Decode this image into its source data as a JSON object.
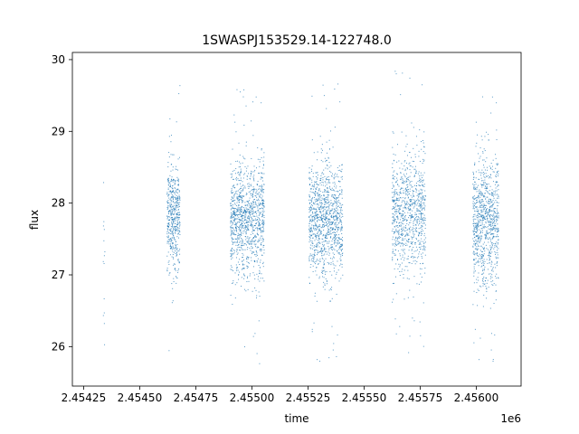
{
  "chart_data": {
    "type": "scatter",
    "title": "1SWASPJ153529.14-122748.0",
    "xlabel": "time",
    "ylabel": "flux",
    "x_offset_label": "1e6",
    "xlim": [
      2.4542,
      2.4562
    ],
    "ylim": [
      25.45,
      30.1
    ],
    "x_ticks": [
      2.45425,
      2.4545,
      2.45475,
      2.455,
      2.45525,
      2.4555,
      2.45575,
      2.456
    ],
    "x_tick_labels": [
      "2.45425",
      "2.45450",
      "2.45475",
      "2.45500",
      "2.45525",
      "2.45550",
      "2.45575",
      "2.45600"
    ],
    "y_ticks": [
      26,
      27,
      28,
      29,
      30
    ],
    "y_tick_labels": [
      "26",
      "27",
      "28",
      "29",
      "30"
    ],
    "grid": false,
    "marker_color": "#1f77b4",
    "clusters": [
      {
        "x_range": [
          2.454337,
          2.454345
        ],
        "center": 27.3,
        "spread": 0.8,
        "count": 14
      },
      {
        "x_range": [
          2.454622,
          2.45468
        ],
        "center": 27.8,
        "spread": 0.35,
        "count": 500
      },
      {
        "x_range": [
          2.454905,
          2.455055
        ],
        "center": 27.75,
        "spread": 0.4,
        "count": 1100
      },
      {
        "x_range": [
          2.455255,
          2.455405
        ],
        "center": 27.75,
        "spread": 0.4,
        "count": 1100
      },
      {
        "x_range": [
          2.455625,
          2.455775
        ],
        "center": 27.85,
        "spread": 0.42,
        "count": 900
      },
      {
        "x_range": [
          2.455985,
          2.4561
        ],
        "center": 27.75,
        "spread": 0.45,
        "count": 900
      }
    ]
  }
}
